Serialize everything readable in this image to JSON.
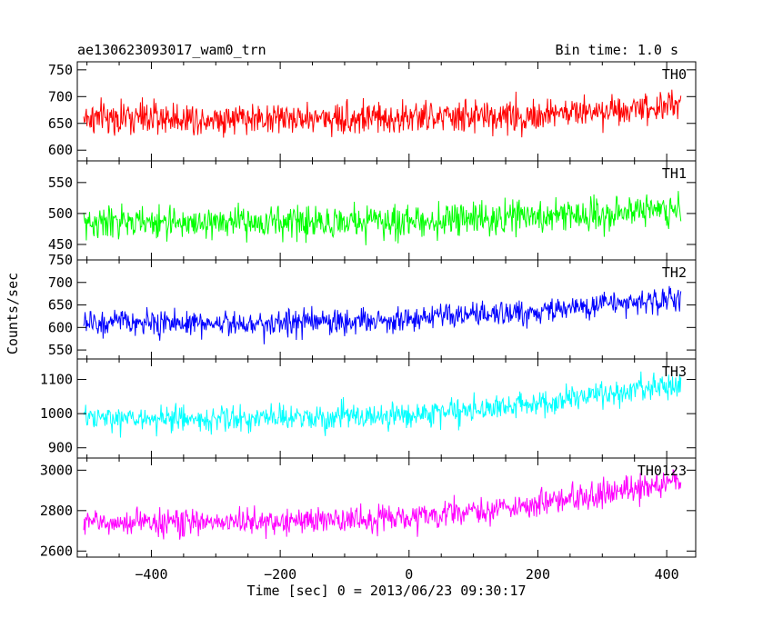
{
  "header": {
    "title": "ae130623093017_wam0_trn",
    "bin_time": "Bin time: 1.0 s"
  },
  "chart_data": {
    "type": "line",
    "title": "ae130623093017_wam0_trn",
    "xlabel": "Time [sec] 0 = 2013/06/23 09:30:17",
    "ylabel": "Counts/sec",
    "xlim": [
      -515,
      445
    ],
    "x_range": [
      -505,
      422
    ],
    "x_ticks": [
      -400,
      -200,
      0,
      200,
      400
    ],
    "x_tick_labels": [
      "−400",
      "−200",
      "0",
      "200",
      "400"
    ],
    "grid": false,
    "panels": [
      {
        "name": "TH0",
        "color": "#ff0000",
        "ylim": [
          580,
          765
        ],
        "y_ticks": [
          600,
          650,
          700,
          750
        ],
        "y_tick_labels": [
          "600",
          "650",
          "700",
          "750"
        ],
        "trend": [
          [
            -505,
            660
          ],
          [
            -300,
            660
          ],
          [
            0,
            660
          ],
          [
            200,
            665
          ],
          [
            300,
            675
          ],
          [
            422,
            685
          ]
        ],
        "noise": 26
      },
      {
        "name": "TH1",
        "color": "#00ff00",
        "ylim": [
          425,
          585
        ],
        "y_ticks": [
          450,
          500,
          550
        ],
        "y_tick_labels": [
          "450",
          "500",
          "550"
        ],
        "trend": [
          [
            -505,
            485
          ],
          [
            -300,
            485
          ],
          [
            0,
            487
          ],
          [
            200,
            495
          ],
          [
            300,
            500
          ],
          [
            422,
            510
          ]
        ],
        "noise": 22
      },
      {
        "name": "TH2",
        "color": "#0000ff",
        "ylim": [
          530,
          750
        ],
        "y_ticks": [
          550,
          600,
          650,
          700,
          750
        ],
        "y_tick_labels": [
          "550",
          "600",
          "650",
          "700",
          "750"
        ],
        "trend": [
          [
            -505,
            610
          ],
          [
            -200,
            610
          ],
          [
            0,
            618
          ],
          [
            200,
            635
          ],
          [
            300,
            650
          ],
          [
            422,
            665
          ]
        ],
        "noise": 24
      },
      {
        "name": "TH3",
        "color": "#00ffff",
        "ylim": [
          870,
          1160
        ],
        "y_ticks": [
          900,
          1000,
          1100
        ],
        "y_tick_labels": [
          "900",
          "1000",
          "1100"
        ],
        "trend": [
          [
            -505,
            985
          ],
          [
            -200,
            985
          ],
          [
            0,
            995
          ],
          [
            200,
            1030
          ],
          [
            300,
            1055
          ],
          [
            422,
            1085
          ]
        ],
        "noise": 32
      },
      {
        "name": "TH0123",
        "color": "#ff00ff",
        "ylim": [
          2570,
          3060
        ],
        "y_ticks": [
          2600,
          2800,
          3000
        ],
        "y_tick_labels": [
          "2600",
          "2800",
          "3000"
        ],
        "trend": [
          [
            -505,
            2740
          ],
          [
            -200,
            2745
          ],
          [
            0,
            2765
          ],
          [
            200,
            2830
          ],
          [
            300,
            2880
          ],
          [
            422,
            2950
          ]
        ],
        "noise": 55
      }
    ]
  }
}
